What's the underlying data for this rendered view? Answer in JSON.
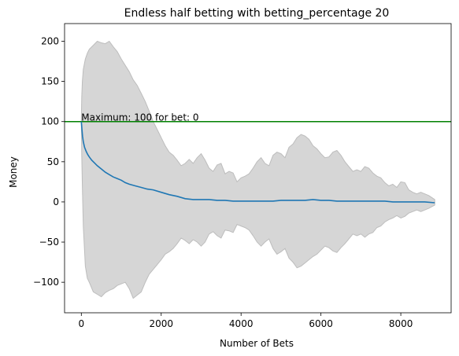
{
  "chart_data": {
    "type": "line",
    "title": "Endless half betting with betting_percentage 20",
    "xlabel": "Number of Bets",
    "ylabel": "Money",
    "xlim": [
      -420,
      9260
    ],
    "ylim": [
      -138,
      222
    ],
    "xticks": [
      0,
      2000,
      4000,
      6000,
      8000
    ],
    "yticks": [
      -100,
      -50,
      0,
      50,
      100,
      150,
      200
    ],
    "grid": false,
    "colors": {
      "mean_line": "#1f77b4",
      "band_fill": "#d6d6d6",
      "band_edge": "#bdbdbd",
      "hline": "#008000"
    },
    "hline": {
      "y": 100
    },
    "annotation": {
      "text": "Maximum: 100 for bet: 0",
      "x": 0,
      "y": 100
    },
    "series": [
      {
        "type": "line",
        "x": [
          0,
          15,
          30,
          50,
          80,
          120,
          160,
          200,
          260,
          320,
          400,
          500,
          600,
          700,
          800,
          900,
          1000,
          1100,
          1200,
          1350,
          1500,
          1650,
          1800,
          2000,
          2200,
          2400,
          2600,
          2800,
          3000,
          3200,
          3400,
          3600,
          3800,
          4000,
          4200,
          4400,
          4600,
          4800,
          5000,
          5200,
          5400,
          5600,
          5800,
          6000,
          6200,
          6400,
          6600,
          6800,
          7000,
          7200,
          7400,
          7600,
          7800,
          8000,
          8200,
          8400,
          8600,
          8850
        ],
        "y": [
          100,
          90,
          82,
          75,
          68,
          63,
          59,
          56,
          52,
          49,
          45,
          41,
          37,
          34,
          31,
          29,
          27,
          24,
          22,
          20,
          18,
          16,
          15,
          12,
          9,
          7,
          4,
          3,
          3,
          3,
          2,
          2,
          1,
          1,
          1,
          1,
          1,
          1,
          2,
          2,
          2,
          2,
          3,
          2,
          2,
          1,
          1,
          1,
          1,
          1,
          1,
          1,
          0,
          0,
          0,
          0,
          0,
          -1
        ]
      },
      {
        "type": "band",
        "x": [
          0,
          10,
          25,
          50,
          100,
          150,
          200,
          300,
          400,
          500,
          600,
          700,
          800,
          900,
          1000,
          1100,
          1200,
          1300,
          1400,
          1500,
          1600,
          1700,
          1800,
          1900,
          2000,
          2100,
          2200,
          2300,
          2400,
          2500,
          2600,
          2700,
          2800,
          2900,
          3000,
          3100,
          3200,
          3300,
          3400,
          3500,
          3600,
          3700,
          3800,
          3900,
          4000,
          4100,
          4200,
          4300,
          4400,
          4500,
          4600,
          4700,
          4800,
          4900,
          5000,
          5100,
          5200,
          5300,
          5400,
          5500,
          5600,
          5700,
          5800,
          5900,
          6000,
          6100,
          6200,
          6300,
          6400,
          6500,
          6600,
          6700,
          6800,
          6900,
          7000,
          7100,
          7200,
          7300,
          7400,
          7500,
          7600,
          7700,
          7800,
          7900,
          8000,
          8100,
          8200,
          8300,
          8400,
          8500,
          8600,
          8700,
          8850
        ],
        "upper": [
          100,
          130,
          150,
          165,
          178,
          185,
          190,
          195,
          200,
          198,
          197,
          200,
          193,
          187,
          178,
          170,
          162,
          152,
          145,
          135,
          125,
          113,
          100,
          90,
          80,
          70,
          62,
          58,
          52,
          45,
          48,
          53,
          48,
          55,
          60,
          52,
          42,
          38,
          46,
          48,
          35,
          38,
          36,
          25,
          30,
          32,
          35,
          42,
          50,
          55,
          48,
          45,
          58,
          62,
          60,
          55,
          68,
          72,
          80,
          84,
          82,
          78,
          70,
          66,
          60,
          55,
          56,
          62,
          64,
          58,
          50,
          44,
          38,
          40,
          38,
          44,
          42,
          36,
          32,
          30,
          24,
          20,
          22,
          18,
          25,
          24,
          15,
          12,
          10,
          12,
          10,
          8,
          3
        ],
        "lower": [
          100,
          60,
          20,
          -30,
          -80,
          -95,
          -100,
          -112,
          -115,
          -118,
          -113,
          -110,
          -108,
          -104,
          -102,
          -100,
          -108,
          -120,
          -116,
          -112,
          -100,
          -90,
          -84,
          -78,
          -72,
          -65,
          -62,
          -58,
          -52,
          -45,
          -48,
          -52,
          -47,
          -50,
          -55,
          -50,
          -40,
          -37,
          -42,
          -45,
          -35,
          -36,
          -38,
          -28,
          -30,
          -32,
          -35,
          -42,
          -50,
          -55,
          -50,
          -46,
          -58,
          -65,
          -62,
          -58,
          -70,
          -75,
          -82,
          -80,
          -76,
          -72,
          -68,
          -65,
          -60,
          -55,
          -57,
          -61,
          -63,
          -57,
          -52,
          -46,
          -40,
          -42,
          -40,
          -44,
          -40,
          -38,
          -32,
          -30,
          -25,
          -22,
          -20,
          -17,
          -20,
          -18,
          -14,
          -12,
          -10,
          -12,
          -10,
          -8,
          -4
        ]
      }
    ]
  }
}
